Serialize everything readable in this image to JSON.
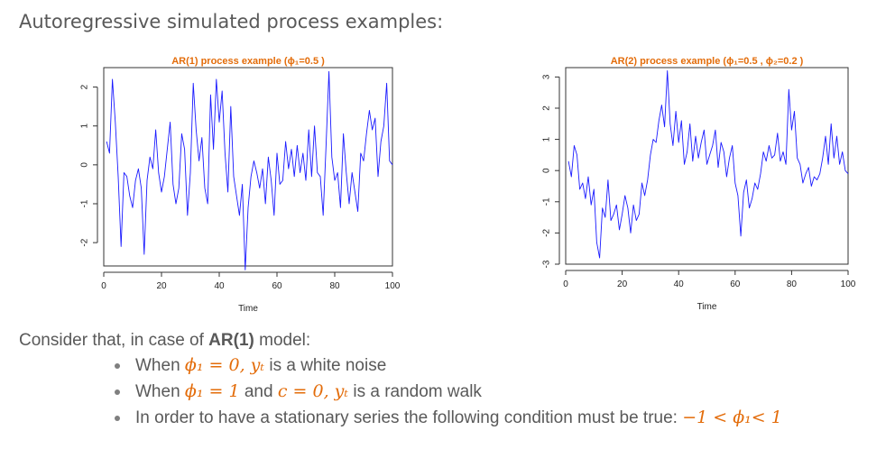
{
  "page": {
    "title": "Autoregressive simulated process examples:"
  },
  "chart_data": [
    {
      "type": "line",
      "title": "AR(1) process example (ϕ₁=0.5 )",
      "xlabel": "Time",
      "ylabel": "",
      "xlim": [
        0,
        100
      ],
      "ylim": [
        -2.6,
        2.5
      ],
      "xticks": [
        0,
        20,
        40,
        60,
        80,
        100
      ],
      "yticks": [
        -2,
        -1,
        0,
        1,
        2
      ],
      "line_color": "#1a1aff",
      "x": [
        1,
        2,
        3,
        4,
        5,
        6,
        7,
        8,
        9,
        10,
        11,
        12,
        13,
        14,
        15,
        16,
        17,
        18,
        19,
        20,
        21,
        22,
        23,
        24,
        25,
        26,
        27,
        28,
        29,
        30,
        31,
        32,
        33,
        34,
        35,
        36,
        37,
        38,
        39,
        40,
        41,
        42,
        43,
        44,
        45,
        46,
        47,
        48,
        49,
        50,
        51,
        52,
        53,
        54,
        55,
        56,
        57,
        58,
        59,
        60,
        61,
        62,
        63,
        64,
        65,
        66,
        67,
        68,
        69,
        70,
        71,
        72,
        73,
        74,
        75,
        76,
        77,
        78,
        79,
        80,
        81,
        82,
        83,
        84,
        85,
        86,
        87,
        88,
        89,
        90,
        91,
        92,
        93,
        94,
        95,
        96,
        97,
        98,
        99,
        100
      ],
      "series": [
        {
          "values": [
            0.6,
            0.3,
            2.2,
            1.1,
            -0.3,
            -2.1,
            -0.2,
            -0.3,
            -0.8,
            -1.1,
            -0.4,
            -0.1,
            -0.6,
            -2.3,
            -0.4,
            0.2,
            -0.1,
            0.9,
            -0.2,
            -0.7,
            -0.3,
            0.4,
            1.1,
            -0.5,
            -1.0,
            -0.6,
            0.8,
            0.4,
            -1.3,
            -0.2,
            2.1,
            0.9,
            0.1,
            0.7,
            -0.6,
            -1.0,
            1.8,
            0.4,
            2.2,
            1.1,
            1.9,
            0.3,
            -0.7,
            1.5,
            -0.3,
            -0.8,
            -1.3,
            -0.5,
            -2.7,
            -1.1,
            -0.3,
            0.1,
            -0.2,
            -0.6,
            -0.1,
            -1.0,
            0.2,
            -0.4,
            -1.3,
            0.3,
            -0.5,
            -0.4,
            0.6,
            -0.1,
            0.4,
            -0.3,
            0.5,
            -0.2,
            0.3,
            -0.4,
            0.9,
            -0.3,
            1.0,
            -0.2,
            -0.3,
            -1.3,
            0.5,
            2.4,
            0.2,
            -0.4,
            -0.2,
            -1.1,
            0.8,
            -0.2,
            -1.0,
            -0.2,
            -0.7,
            -1.2,
            0.3,
            0.1,
            0.8,
            1.4,
            0.9,
            1.2,
            -0.3,
            0.6,
            1.0,
            2.1,
            0.1,
            0.0
          ]
        }
      ]
    },
    {
      "type": "line",
      "title": "AR(2) process example (ϕ₁=0.5 , ϕ₂=0.2 )",
      "xlabel": "Time",
      "ylabel": "",
      "xlim": [
        0,
        100
      ],
      "ylim": [
        -3,
        3.3
      ],
      "xticks": [
        0,
        20,
        40,
        60,
        80,
        100
      ],
      "yticks": [
        -3,
        -2,
        -1,
        0,
        1,
        2,
        3
      ],
      "line_color": "#1a1aff",
      "x": [
        1,
        2,
        3,
        4,
        5,
        6,
        7,
        8,
        9,
        10,
        11,
        12,
        13,
        14,
        15,
        16,
        17,
        18,
        19,
        20,
        21,
        22,
        23,
        24,
        25,
        26,
        27,
        28,
        29,
        30,
        31,
        32,
        33,
        34,
        35,
        36,
        37,
        38,
        39,
        40,
        41,
        42,
        43,
        44,
        45,
        46,
        47,
        48,
        49,
        50,
        51,
        52,
        53,
        54,
        55,
        56,
        57,
        58,
        59,
        60,
        61,
        62,
        63,
        64,
        65,
        66,
        67,
        68,
        69,
        70,
        71,
        72,
        73,
        74,
        75,
        76,
        77,
        78,
        79,
        80,
        81,
        82,
        83,
        84,
        85,
        86,
        87,
        88,
        89,
        90,
        91,
        92,
        93,
        94,
        95,
        96,
        97,
        98,
        99,
        100
      ],
      "series": [
        {
          "values": [
            0.3,
            -0.2,
            0.8,
            0.5,
            -0.6,
            -0.4,
            -0.9,
            -0.2,
            -1.1,
            -0.6,
            -2.3,
            -2.8,
            -1.2,
            -1.5,
            -0.3,
            -1.6,
            -1.4,
            -1.1,
            -1.9,
            -1.4,
            -0.8,
            -1.2,
            -2.0,
            -1.1,
            -1.6,
            -1.4,
            -0.4,
            -0.8,
            -0.3,
            0.5,
            1.0,
            0.9,
            1.6,
            2.1,
            1.4,
            3.2,
            1.5,
            0.8,
            1.9,
            0.9,
            1.6,
            0.2,
            0.6,
            1.5,
            0.3,
            1.1,
            0.4,
            0.9,
            1.3,
            0.2,
            0.5,
            0.8,
            1.3,
            0.1,
            0.9,
            0.6,
            -0.2,
            0.4,
            0.8,
            -0.4,
            -0.8,
            -2.1,
            -0.7,
            -0.3,
            -1.2,
            -0.9,
            -0.4,
            -0.6,
            -0.1,
            0.6,
            0.3,
            0.8,
            0.4,
            0.5,
            1.2,
            0.3,
            0.6,
            0.2,
            2.6,
            1.3,
            1.9,
            0.4,
            0.2,
            -0.4,
            -0.1,
            0.1,
            -0.5,
            -0.2,
            -0.3,
            -0.1,
            0.4,
            1.1,
            0.2,
            1.5,
            0.4,
            1.1,
            0.2,
            0.6,
            0.0,
            -0.1
          ]
        }
      ]
    }
  ],
  "notes": {
    "intro_prefix": "Consider that, in case of ",
    "intro_bold": "AR(1)",
    "intro_suffix": " model:",
    "bullets": [
      {
        "m1": "ϕ₁ = 0, ",
        "m2": "yₜ",
        "tail": " is a white noise"
      },
      {
        "m1": "ϕ₁ = 1",
        "mid": " and ",
        "m2": "c = 0, yₜ",
        "tail": " is a random walk"
      },
      {
        "text": "In order to have a stationary series the following condition must be true: ",
        "cond": "−1 < ϕ₁< 1"
      }
    ],
    "when_word": "When "
  },
  "colors": {
    "accent": "#E36C0A",
    "body_text": "#595959",
    "series": "#1a1aff"
  }
}
